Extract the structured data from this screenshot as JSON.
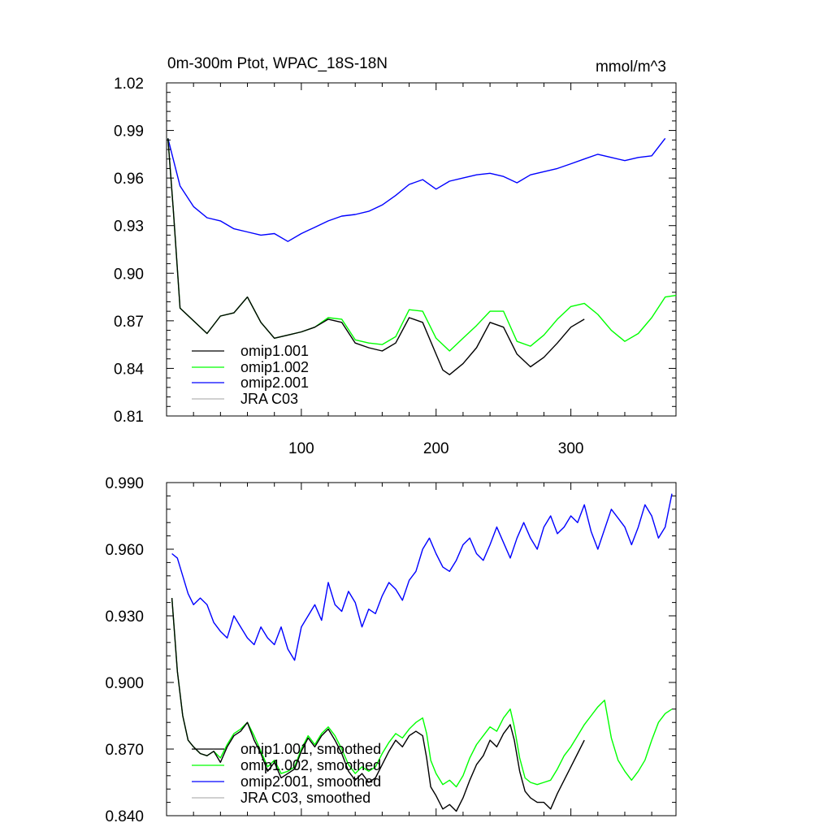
{
  "colors": {
    "omip1_001": "#000000",
    "omip1_002": "#00ff00",
    "omip2_001": "#0000ff",
    "jra_c03": "#b4b4b4"
  },
  "chart_data": [
    {
      "type": "line",
      "title": "0m-300m Ptot, WPAC_18S-18N",
      "units": "mmol/m^3",
      "xlim": [
        0,
        378
      ],
      "ylim": [
        0.81,
        1.02
      ],
      "xticks": [
        100,
        200,
        300
      ],
      "xtick_labels": [
        "100",
        "200",
        "300"
      ],
      "yticks": [
        0.81,
        0.84,
        0.87,
        0.9,
        0.93,
        0.96,
        0.99,
        1.02
      ],
      "ytick_labels": [
        "0.81",
        "0.84",
        "0.87",
        "0.90",
        "0.93",
        "0.96",
        "0.99",
        "1.02"
      ],
      "legend_position": "bottom-left",
      "legend": [
        "omip1.001",
        "omip1.002",
        "omip2.001",
        "JRA C03"
      ],
      "series": [
        {
          "name": "omip1.001",
          "color_key": "omip1_001",
          "x": [
            1,
            5,
            10,
            20,
            30,
            40,
            50,
            60,
            70,
            80,
            90,
            100,
            110,
            120,
            130,
            140,
            150,
            160,
            170,
            180,
            190,
            200,
            205,
            210,
            220,
            230,
            240,
            250,
            260,
            270,
            280,
            290,
            300,
            310
          ],
          "y": [
            0.985,
            0.94,
            0.878,
            0.87,
            0.862,
            0.873,
            0.875,
            0.885,
            0.869,
            0.859,
            0.861,
            0.863,
            0.866,
            0.871,
            0.869,
            0.856,
            0.853,
            0.851,
            0.856,
            0.872,
            0.869,
            0.849,
            0.839,
            0.836,
            0.843,
            0.853,
            0.869,
            0.866,
            0.849,
            0.841,
            0.847,
            0.856,
            0.866,
            0.871
          ]
        },
        {
          "name": "omip1.002",
          "color_key": "omip1_002",
          "x": [
            1,
            5,
            10,
            20,
            30,
            40,
            50,
            60,
            70,
            80,
            90,
            100,
            110,
            120,
            130,
            140,
            150,
            160,
            170,
            180,
            190,
            200,
            210,
            220,
            230,
            240,
            250,
            260,
            270,
            280,
            290,
            300,
            310,
            320,
            330,
            340,
            350,
            360,
            370,
            378
          ],
          "y": [
            0.985,
            0.94,
            0.878,
            0.87,
            0.862,
            0.873,
            0.875,
            0.885,
            0.869,
            0.859,
            0.861,
            0.863,
            0.866,
            0.872,
            0.871,
            0.858,
            0.856,
            0.855,
            0.86,
            0.877,
            0.876,
            0.859,
            0.851,
            0.859,
            0.867,
            0.876,
            0.876,
            0.857,
            0.854,
            0.861,
            0.871,
            0.879,
            0.881,
            0.874,
            0.864,
            0.857,
            0.862,
            0.872,
            0.885,
            0.886
          ]
        },
        {
          "name": "omip2.001",
          "color_key": "omip2_001",
          "x": [
            1,
            10,
            20,
            30,
            40,
            50,
            60,
            70,
            80,
            90,
            100,
            110,
            120,
            130,
            140,
            150,
            160,
            170,
            180,
            190,
            200,
            210,
            220,
            230,
            240,
            250,
            260,
            270,
            280,
            290,
            300,
            310,
            320,
            330,
            340,
            350,
            360,
            370
          ],
          "y": [
            0.985,
            0.955,
            0.942,
            0.935,
            0.933,
            0.928,
            0.926,
            0.924,
            0.925,
            0.92,
            0.925,
            0.929,
            0.933,
            0.936,
            0.937,
            0.939,
            0.943,
            0.949,
            0.956,
            0.959,
            0.953,
            0.958,
            0.96,
            0.962,
            0.963,
            0.961,
            0.957,
            0.962,
            0.964,
            0.966,
            0.969,
            0.972,
            0.975,
            0.973,
            0.971,
            0.973,
            0.974,
            0.985
          ]
        }
      ]
    },
    {
      "type": "line",
      "title": "",
      "xlim": [
        0,
        378
      ],
      "ylim": [
        0.84,
        0.99
      ],
      "xticks": [
        100,
        200,
        300
      ],
      "xtick_labels": [],
      "yticks": [
        0.84,
        0.87,
        0.9,
        0.93,
        0.96,
        0.99
      ],
      "ytick_labels": [
        "0.840",
        "0.870",
        "0.900",
        "0.930",
        "0.960",
        "0.990"
      ],
      "legend_position": "bottom-left",
      "legend": [
        "omip1.001, smoothed",
        "omip1.002, smoothed",
        "omip2.001, smoothed",
        "JRA C03, smoothed"
      ],
      "series": [
        {
          "name": "omip1.001, smoothed",
          "color_key": "omip1_001",
          "x": [
            4,
            8,
            12,
            16,
            20,
            25,
            30,
            35,
            40,
            45,
            50,
            55,
            60,
            65,
            70,
            75,
            80,
            85,
            90,
            95,
            100,
            105,
            110,
            115,
            120,
            125,
            130,
            135,
            140,
            145,
            150,
            155,
            160,
            165,
            170,
            175,
            180,
            185,
            190,
            193,
            196,
            200,
            205,
            210,
            215,
            220,
            225,
            230,
            235,
            240,
            245,
            250,
            255,
            258,
            262,
            266,
            270,
            275,
            280,
            285,
            290,
            295,
            300,
            305,
            310
          ],
          "y": [
            0.938,
            0.905,
            0.885,
            0.874,
            0.871,
            0.868,
            0.867,
            0.869,
            0.864,
            0.871,
            0.876,
            0.878,
            0.882,
            0.874,
            0.868,
            0.86,
            0.864,
            0.857,
            0.859,
            0.861,
            0.869,
            0.875,
            0.871,
            0.876,
            0.879,
            0.874,
            0.868,
            0.86,
            0.856,
            0.859,
            0.855,
            0.857,
            0.863,
            0.869,
            0.874,
            0.871,
            0.876,
            0.878,
            0.876,
            0.866,
            0.853,
            0.849,
            0.843,
            0.845,
            0.842,
            0.848,
            0.856,
            0.863,
            0.867,
            0.874,
            0.871,
            0.877,
            0.881,
            0.874,
            0.86,
            0.851,
            0.848,
            0.846,
            0.846,
            0.843,
            0.85,
            0.856,
            0.862,
            0.868,
            0.874
          ]
        },
        {
          "name": "omip1.002, smoothed",
          "color_key": "omip1_002",
          "x": [
            4,
            8,
            12,
            16,
            20,
            25,
            30,
            35,
            40,
            45,
            50,
            55,
            60,
            65,
            70,
            75,
            80,
            85,
            90,
            95,
            100,
            105,
            110,
            115,
            120,
            125,
            130,
            135,
            140,
            145,
            150,
            155,
            160,
            165,
            170,
            175,
            180,
            185,
            190,
            193,
            196,
            200,
            205,
            210,
            215,
            220,
            225,
            230,
            235,
            240,
            245,
            250,
            255,
            258,
            262,
            266,
            270,
            275,
            280,
            285,
            290,
            295,
            300,
            305,
            310,
            315,
            320,
            325,
            330,
            335,
            340,
            345,
            350,
            355,
            360,
            365,
            370,
            375
          ],
          "y": [
            0.938,
            0.905,
            0.885,
            0.874,
            0.871,
            0.868,
            0.867,
            0.869,
            0.866,
            0.872,
            0.877,
            0.879,
            0.882,
            0.876,
            0.869,
            0.862,
            0.865,
            0.859,
            0.86,
            0.862,
            0.87,
            0.876,
            0.872,
            0.877,
            0.88,
            0.876,
            0.87,
            0.863,
            0.859,
            0.862,
            0.86,
            0.862,
            0.868,
            0.873,
            0.877,
            0.875,
            0.879,
            0.882,
            0.884,
            0.877,
            0.865,
            0.859,
            0.854,
            0.856,
            0.853,
            0.858,
            0.866,
            0.872,
            0.876,
            0.88,
            0.878,
            0.884,
            0.888,
            0.88,
            0.866,
            0.857,
            0.855,
            0.854,
            0.855,
            0.856,
            0.861,
            0.867,
            0.871,
            0.876,
            0.881,
            0.885,
            0.889,
            0.892,
            0.875,
            0.865,
            0.86,
            0.856,
            0.86,
            0.865,
            0.874,
            0.882,
            0.886,
            0.888
          ]
        },
        {
          "name": "omip2.001, smoothed",
          "color_key": "omip2_001",
          "x": [
            4,
            8,
            12,
            16,
            20,
            25,
            30,
            35,
            40,
            45,
            50,
            55,
            60,
            65,
            70,
            75,
            80,
            85,
            90,
            95,
            100,
            105,
            110,
            115,
            120,
            125,
            130,
            135,
            140,
            145,
            150,
            155,
            160,
            165,
            170,
            175,
            180,
            185,
            190,
            195,
            200,
            205,
            210,
            215,
            220,
            225,
            230,
            235,
            240,
            245,
            250,
            255,
            260,
            265,
            270,
            275,
            280,
            285,
            290,
            295,
            300,
            305,
            310,
            315,
            320,
            325,
            330,
            335,
            340,
            345,
            350,
            355,
            360,
            365,
            370,
            375
          ],
          "y": [
            0.958,
            0.956,
            0.948,
            0.94,
            0.935,
            0.938,
            0.935,
            0.927,
            0.923,
            0.92,
            0.93,
            0.925,
            0.92,
            0.917,
            0.925,
            0.92,
            0.917,
            0.925,
            0.915,
            0.91,
            0.925,
            0.93,
            0.935,
            0.928,
            0.945,
            0.935,
            0.932,
            0.941,
            0.936,
            0.925,
            0.933,
            0.931,
            0.939,
            0.945,
            0.942,
            0.937,
            0.946,
            0.95,
            0.96,
            0.965,
            0.958,
            0.952,
            0.95,
            0.955,
            0.962,
            0.965,
            0.958,
            0.955,
            0.962,
            0.97,
            0.963,
            0.956,
            0.965,
            0.972,
            0.965,
            0.96,
            0.97,
            0.975,
            0.967,
            0.97,
            0.975,
            0.972,
            0.98,
            0.968,
            0.96,
            0.969,
            0.978,
            0.974,
            0.97,
            0.962,
            0.97,
            0.98,
            0.975,
            0.965,
            0.97,
            0.985
          ]
        }
      ]
    }
  ]
}
